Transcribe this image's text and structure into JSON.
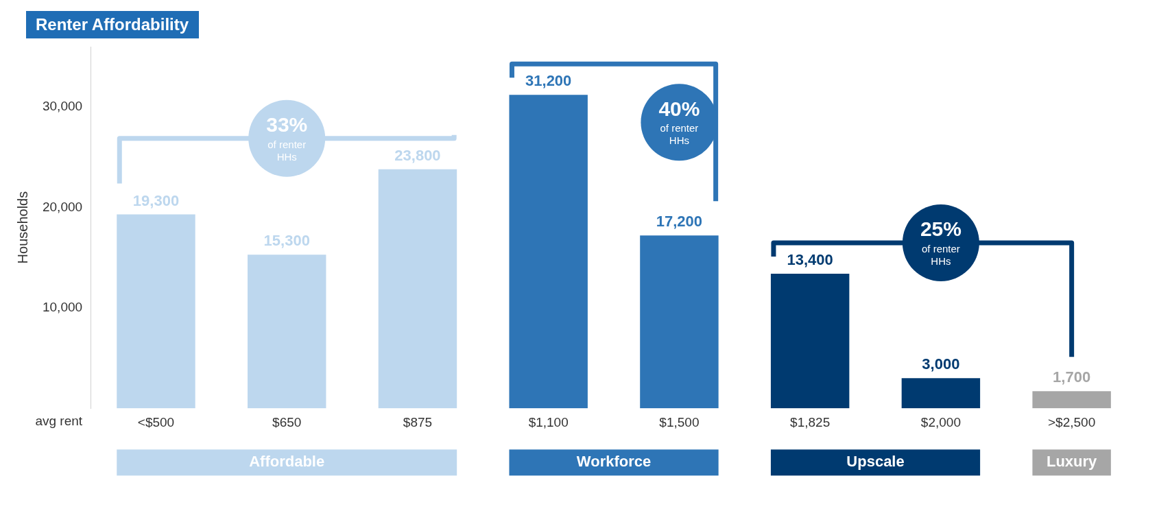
{
  "chart_data": {
    "type": "bar",
    "title": "Renter Affordability",
    "xlabel": "avg rent",
    "ylabel": "Households",
    "categories": [
      "<$500",
      "$650",
      "$875",
      "$1,100",
      "$1,500",
      "$1,825",
      "$2,000",
      ">$2,500"
    ],
    "values": [
      19300,
      15300,
      23800,
      31200,
      17200,
      13400,
      3000,
      1700
    ],
    "value_labels": [
      "19,300",
      "15,300",
      "23,800",
      "31,200",
      "17,200",
      "13,400",
      "3,000",
      "1,700"
    ],
    "colors": [
      "#bdd7ee",
      "#bdd7ee",
      "#bdd7ee",
      "#2e75b6",
      "#2e75b6",
      "#003a70",
      "#003a70",
      "#a6a6a6"
    ],
    "ylim": [
      0,
      36000
    ],
    "yticks": [
      {
        "value": 10000,
        "label": "10,000"
      },
      {
        "value": 20000,
        "label": "20,000"
      },
      {
        "value": 30000,
        "label": "30,000"
      }
    ],
    "grid": false,
    "annotations": [
      "33% of renter HHs",
      "40% of renter HHs",
      "25% of renter HHs",
      "Affordable",
      "Workforce",
      "Upscale",
      "Luxury"
    ]
  }
}
